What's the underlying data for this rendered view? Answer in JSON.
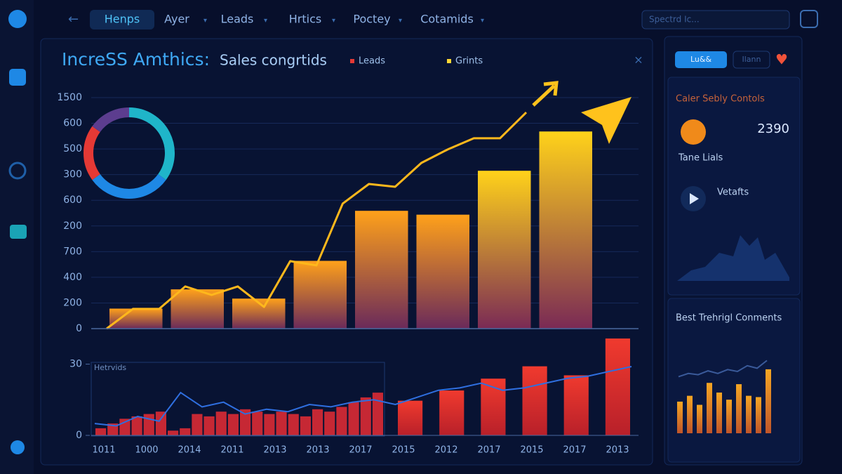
{
  "nav": {
    "items": [
      "Henps",
      "Ayer",
      "Leads",
      "Hrtics",
      "Poctey",
      "Cotamids"
    ],
    "search": "Spectrd Ic..."
  },
  "header": {
    "title": "IncreSS Amthics:",
    "subtitle": "Sales congrtids",
    "legend": [
      {
        "name": "Leads",
        "color": "#e53935"
      },
      {
        "name": "Grints",
        "color": "#fdd835"
      }
    ]
  },
  "main_chart": {
    "type": "bar",
    "y_labels": [
      "1500",
      "600",
      "500",
      "300",
      "600",
      "200",
      "700",
      "400",
      "200",
      "0"
    ],
    "ylim": [
      0,
      1500
    ],
    "bars": [
      130,
      255,
      195,
      440,
      765,
      740,
      1025,
      1280
    ],
    "line": [
      0,
      128,
      128,
      274,
      219,
      274,
      141,
      438,
      411,
      812,
      939,
      921,
      1076,
      1163,
      1236,
      1236,
      1404
    ],
    "donut": {
      "values": [
        35,
        30,
        20,
        15
      ],
      "colors": [
        "#1fb5c9",
        "#1e88e5",
        "#e53935",
        "#5c3d8f"
      ]
    }
  },
  "lower_chart": {
    "type": "bar",
    "label": "Hetrvids",
    "ylim": [
      0,
      42
    ],
    "yticks": [
      0,
      30
    ],
    "x_labels": [
      "1011",
      "1000",
      "2014",
      "2011",
      "2013",
      "2013",
      "2017",
      "2015",
      "2012",
      "2017",
      "2015",
      "2017",
      "2013"
    ],
    "dense_bars": [
      3,
      5,
      7,
      8,
      9,
      10,
      2,
      3,
      9,
      8,
      10,
      9,
      11,
      10,
      9,
      10,
      9,
      8,
      11,
      10,
      12,
      14,
      16,
      18
    ],
    "bars": [
      14.6,
      18.9,
      23.9,
      29.1,
      25.3,
      40.8
    ],
    "line": [
      5,
      4,
      8,
      6,
      18,
      12,
      14,
      9,
      11,
      10,
      13,
      12,
      14,
      15,
      13,
      16,
      19,
      20,
      22,
      19,
      20,
      22,
      24,
      25,
      27,
      29
    ]
  },
  "side": {
    "buttons": [
      "Lu&&",
      "Ilann"
    ],
    "title": "Caler Sebly Contols",
    "stat": "2390",
    "stat_label": "Tane Lials",
    "video": "Vetafts",
    "bottom_title": "Best Trehrigl Conments",
    "mini": {
      "ylim": [
        0,
        10
      ],
      "bars": [
        4.9,
        5.8,
        4.4,
        7.8,
        6.3,
        5.2,
        7.6,
        5.8,
        5.6,
        9.9
      ],
      "line": [
        5.5,
        6,
        5.8,
        6.4,
        6,
        6.6,
        6.3,
        7.2,
        6.8,
        8
      ]
    }
  }
}
